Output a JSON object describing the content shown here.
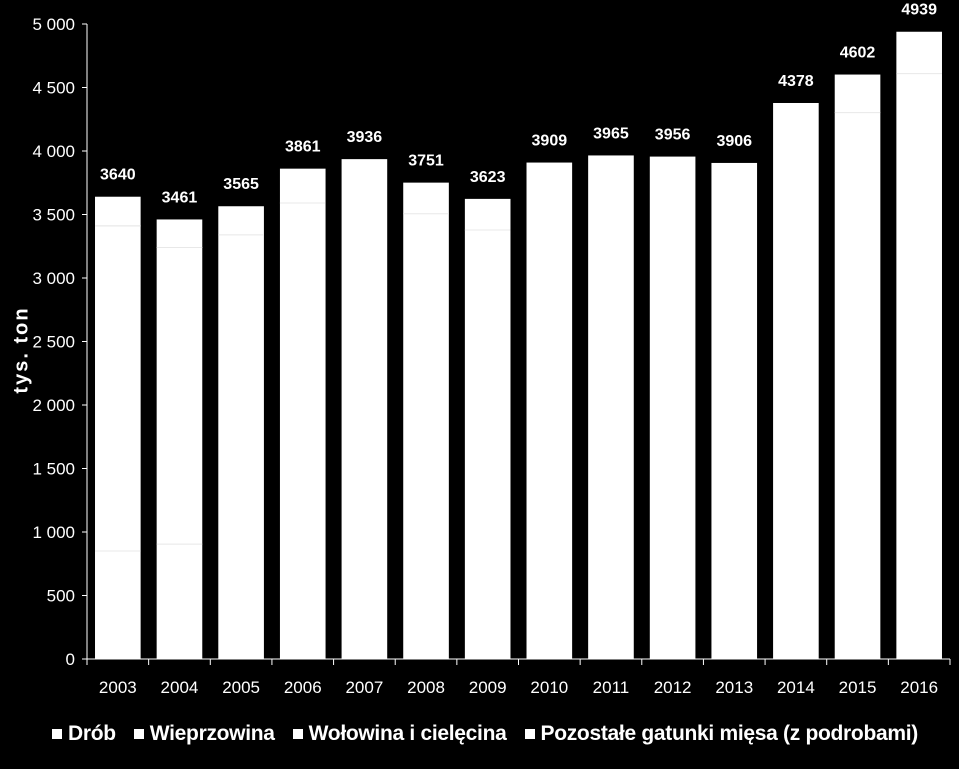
{
  "chart_data": {
    "type": "bar",
    "stacked": true,
    "title": "",
    "ylabel": "tys. ton",
    "xlabel": "",
    "ylim": [
      0,
      5000
    ],
    "ytick_values": [
      0,
      500,
      1000,
      1500,
      2000,
      2500,
      3000,
      3500,
      4000,
      4500,
      5000
    ],
    "ytick_labels": [
      "0",
      "500",
      "1 000",
      "1 500",
      "2 000",
      "2 500",
      "3 000",
      "3 500",
      "4 000",
      "4 500",
      "5 000"
    ],
    "categories": [
      "2003",
      "2004",
      "2005",
      "2006",
      "2007",
      "2008",
      "2009",
      "2010",
      "2011",
      "2012",
      "2013",
      "2014",
      "2015",
      "2016"
    ],
    "totals": [
      3640,
      3461,
      3565,
      3861,
      3936,
      3751,
      3623,
      3909,
      3965,
      3956,
      3906,
      4378,
      4602,
      4939
    ],
    "total_labels": [
      "3640",
      "3461",
      "3565",
      "3861",
      "3936",
      "3751",
      "3623",
      "3909",
      "3965",
      "3956",
      "3906",
      "4378",
      "4602",
      "4939"
    ],
    "series": [
      {
        "name": "Drób",
        "values": [
          850,
          905,
          null,
          null,
          null,
          null,
          null,
          null,
          null,
          null,
          null,
          null,
          null,
          null
        ]
      },
      {
        "name": "Wieprzowina",
        "values": [
          2560,
          2335,
          null,
          null,
          null,
          null,
          null,
          null,
          null,
          null,
          null,
          null,
          null,
          null
        ]
      },
      {
        "name": "Wołowina i cielęcina",
        "values": [
          null,
          null,
          null,
          null,
          null,
          null,
          null,
          null,
          null,
          null,
          null,
          null,
          null,
          null
        ]
      },
      {
        "name": "Pozostałe gatunki mięsa (z podrobami)",
        "values": [
          230,
          221,
          225,
          270,
          null,
          245,
          245,
          null,
          null,
          null,
          null,
          null,
          300,
          330
        ]
      }
    ],
    "grid": false,
    "legend_position": "bottom",
    "colors": {
      "background": "#000000",
      "bars": "#ffffff",
      "text": "#ffffff"
    }
  }
}
